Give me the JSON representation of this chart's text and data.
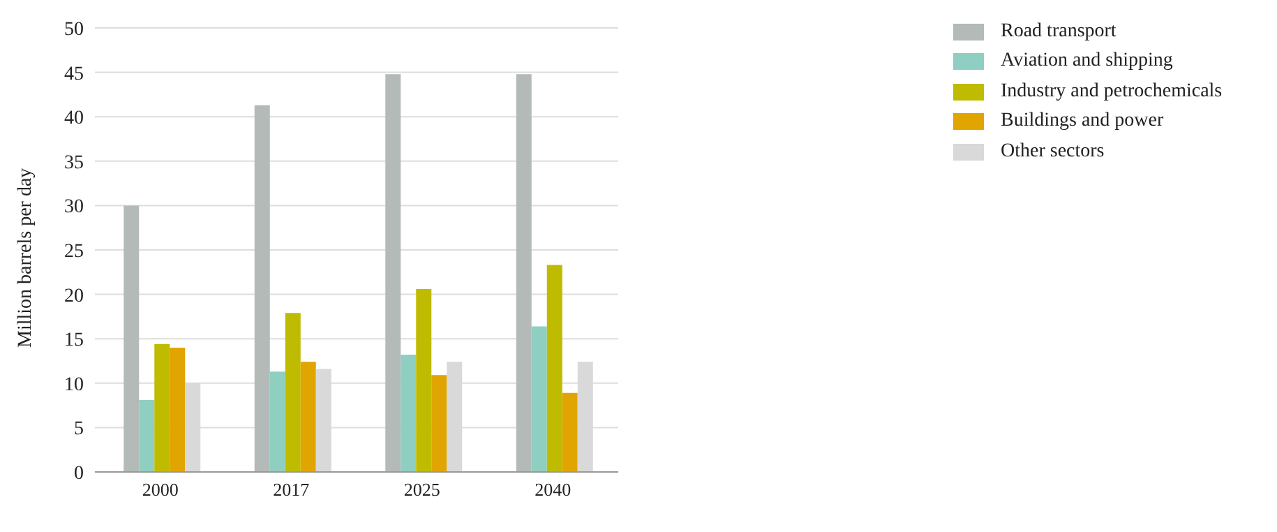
{
  "chart_data": {
    "type": "bar",
    "ylabel": "Million barrels per day",
    "categories": [
      "2000",
      "2017",
      "2025",
      "2040"
    ],
    "series": [
      {
        "name": "Road transport",
        "color": "#b3bab7",
        "values": [
          30,
          41.3,
          44.8,
          44.8
        ]
      },
      {
        "name": "Aviation and shipping",
        "color": "#8fcfc1",
        "values": [
          8.1,
          11.3,
          13.2,
          16.4
        ]
      },
      {
        "name": "Industry and petrochemicals",
        "color": "#bfbb00",
        "values": [
          14.4,
          17.9,
          20.6,
          23.3
        ]
      },
      {
        "name": "Buildings and power",
        "color": "#e0a500",
        "values": [
          14,
          12.4,
          10.9,
          8.9
        ]
      },
      {
        "name": "Other sectors",
        "color": "#d9d9d9",
        "values": [
          10,
          11.6,
          12.4,
          12.4
        ]
      }
    ],
    "ylim": [
      0,
      50
    ],
    "yticks": [
      0,
      5,
      10,
      15,
      20,
      25,
      30,
      35,
      40,
      45,
      50
    ],
    "grid": "y",
    "legend": "top right"
  }
}
